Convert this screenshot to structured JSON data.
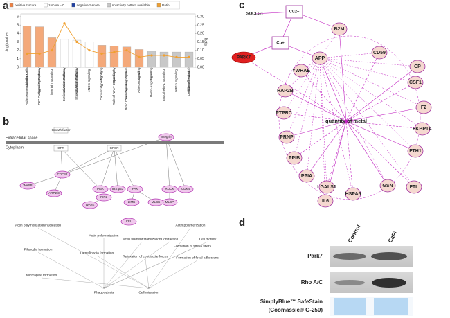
{
  "panel_labels": [
    "a",
    "b",
    "c",
    "d"
  ],
  "chart_data": {
    "type": "bar",
    "y_label": "-log(p-value)",
    "y2_label": "Ratio",
    "categories": [
      "Aldosterone Signaling in Epithelial Cells",
      "P2Y Purigenic Receptor Signaling Pathway",
      "Thrombin Signaling",
      "Extrinsic Prothrombin Activation Pathway",
      "Intrinsic Prothrombin Activation Pathway",
      "eNOS Signaling",
      "Cardiac Hypertrophy Signaling",
      "Role of NFAT in Cardiac Hypertrophy",
      "Nitric Oxide Signaling in the Cardiovascular System",
      "Atherosclerosis Signaling",
      "Renin-Angiotensin Signaling",
      "Endothelin-1 Signaling",
      "HIF1α Signaling",
      "Cellular Effects of Sildenafil (Viagra)"
    ],
    "values": [
      4.9,
      4.8,
      3.5,
      3.3,
      3.2,
      3.0,
      2.6,
      2.5,
      2.4,
      2.1,
      1.9,
      1.8,
      1.8,
      1.8
    ],
    "colors": [
      "#f4a97a",
      "#f4a97a",
      "#f4a97a",
      "#ffffff",
      "#ffffff",
      "#ffffff",
      "#f4a97a",
      "#f4a97a",
      "#f4a97a",
      "#f4a97a",
      "#c8c8c8",
      "#c8c8c8",
      "#c8c8c8",
      "#c8c8c8"
    ],
    "line": {
      "name": "Ratio",
      "color": "#f0a030",
      "axis": "y2",
      "values": [
        0.08,
        0.08,
        0.1,
        0.26,
        0.15,
        0.1,
        0.08,
        0.09,
        0.1,
        0.06,
        0.07,
        0.07,
        0.06,
        0.06
      ]
    },
    "ylim": [
      0,
      6
    ],
    "yticks": [
      0,
      1,
      2,
      3,
      4,
      5,
      6
    ],
    "y2lim": [
      0,
      0.3
    ],
    "y2ticks": [
      {
        "value": 0,
        "label": "0.00"
      },
      0.05,
      {
        "value": 0.1,
        "label": "0.10"
      },
      0.15,
      {
        "value": 0.2,
        "label": "0.20"
      },
      0.25,
      {
        "value": 0.3,
        "label": "0.30"
      }
    ],
    "legend": [
      {
        "name": "positive z-score",
        "color": "#f08040"
      },
      {
        "name": "z-score = 0",
        "color": "#ffffff"
      },
      {
        "name": "negative z-score",
        "color": "#2040a0"
      },
      {
        "name": "no activity pattern available",
        "color": "#c8c8c8"
      },
      {
        "name": "Ratio",
        "color": "#f0a030"
      }
    ],
    "legend_position": "top"
  },
  "pathway": {
    "compartments": [
      "Extracellular space",
      "Cytoplasm"
    ],
    "nodes": [
      "Growth factor",
      "GFR",
      "GPCR",
      "Integrin",
      "CDC42",
      "WASP",
      "ARP2/3",
      "PI3K",
      "IRS p53",
      "PAK",
      "ROCK",
      "MLCP",
      "LIMK",
      "MLCK",
      "WAVE",
      "PIP2",
      "CFL",
      "CDK4"
    ],
    "processes": [
      "Actin polymerization/nucleation",
      "Filopodia formation",
      "Microspike formation",
      "Actin polymerization",
      "Lamellipodia formation",
      "Actin filament stabilization",
      "Relaxation of contractile forces",
      "Contraction",
      "Actin polymerization",
      "Formation of stress fibers",
      "Formation of focal adhesions",
      "Cell motility",
      "Phagocytosis",
      "Cell migration"
    ]
  },
  "network": {
    "nodes": [
      "SUCLG1",
      "Cu2+",
      "Cu+",
      "PARK7",
      "B2M",
      "CD59",
      "CP",
      "CSF1",
      "F2",
      "FKBP1A",
      "FTH1",
      "FTL",
      "GSN",
      "HSPA5",
      "IL6",
      "LGALS1",
      "PPIA",
      "PPIB",
      "PRNP",
      "PTPRC",
      "RAP2B",
      "YWHAE",
      "APP"
    ],
    "center": "quantity of metal"
  },
  "blot": {
    "lanes": [
      "Control",
      "CaPi"
    ],
    "rows": [
      "Park7",
      "Rho A/C"
    ],
    "stain_label": [
      "SimplyBlue™ SafeStain",
      "(Coomassie® G-250)"
    ]
  }
}
